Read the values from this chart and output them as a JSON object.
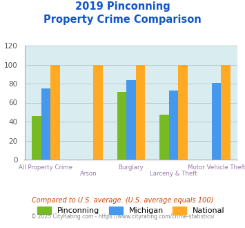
{
  "title_line1": "2019 Pinconning",
  "title_line2": "Property Crime Comparison",
  "categories": [
    "All Property Crime",
    "Arson",
    "Burglary",
    "Larceny & Theft",
    "Motor Vehicle Theft"
  ],
  "series": {
    "Pinconning": [
      46,
      0,
      71,
      47,
      0
    ],
    "Michigan": [
      75,
      0,
      84,
      73,
      81
    ],
    "National": [
      100,
      100,
      100,
      100,
      100
    ]
  },
  "colors": {
    "Pinconning": "#77bb22",
    "Michigan": "#4499ee",
    "National": "#ffaa22"
  },
  "ylim": [
    0,
    120
  ],
  "yticks": [
    0,
    20,
    40,
    60,
    80,
    100,
    120
  ],
  "bar_width": 0.22,
  "plot_bg": "#d9edf0",
  "title_color": "#1155cc",
  "xlabel_color": "#9977aa",
  "ytick_color": "#555555",
  "grid_color": "#b0cccc",
  "footnote1": "Compared to U.S. average. (U.S. average equals 100)",
  "footnote2": "© 2025 CityRating.com - https://www.cityrating.com/crime-statistics/",
  "footnote1_color": "#cc4400",
  "footnote2_color": "#888888",
  "series_names": [
    "Pinconning",
    "Michigan",
    "National"
  ]
}
